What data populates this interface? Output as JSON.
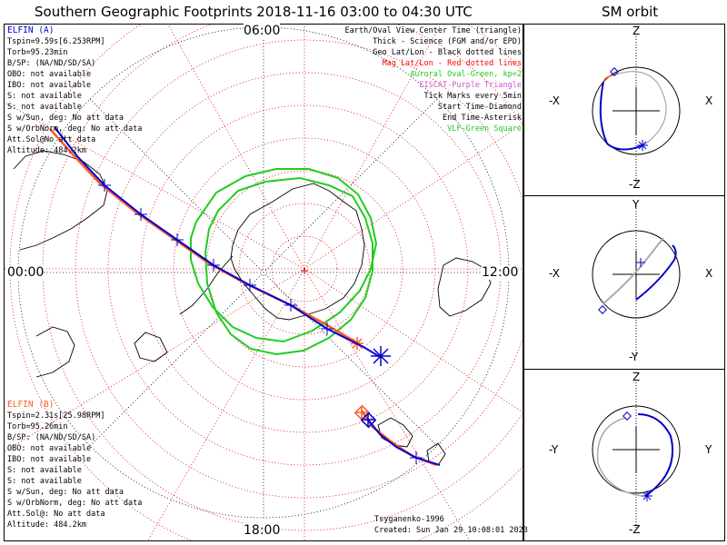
{
  "title": "Southern Geographic Footprints 2018-11-16 03:00 to 04:30 UTC",
  "sm_title": "SM orbit",
  "hours": {
    "top": "06:00",
    "left": "00:00",
    "right": "12:00",
    "bottom": "18:00"
  },
  "elfin_a": {
    "name": "ELFIN (A)",
    "color": "#0000cc",
    "lines": [
      "Tspin=9.59s[6.253RPM]",
      "Torb=95.23min",
      "B/SP: (NA/ND/SD/SA)",
      "OBO: not available",
      "IBO: not available",
      "S: not available",
      "S: not available",
      "S w/Sun, deg: No att data",
      "S w/OrbNorm, deg: No att data",
      "Att.Sol@No att data",
      "Altitude: 484.2km"
    ]
  },
  "elfin_b": {
    "name": "ELFIN (B)",
    "color": "#ff5a2a",
    "lines": [
      "Tspin=2.31s[25.98RPM]",
      "Torb=95.26min",
      "B/SP: (NA/ND/SD/SA)",
      "OBO: not available",
      "IBO: not available",
      "S: not available",
      "S: not available",
      "S w/Sun, deg: No att data",
      "S w/OrbNorm, deg: No att data",
      "Att.Sol@: No att data",
      "Altitude: 484.2km"
    ]
  },
  "legend": [
    {
      "text": "Earth/Oval View Center Time (triangle)",
      "color": "#000000"
    },
    {
      "text": "Thick - Science (FGM and/or EPD)",
      "color": "#000000"
    },
    {
      "text": "Geo Lat/Lon - Black dotted lines",
      "color": "#000000"
    },
    {
      "text": "Mag Lat/Lon - Red dotted lines",
      "color": "#ff0000"
    },
    {
      "text": "Auroral Oval-Green, kp=2",
      "color": "#22cc22"
    },
    {
      "text": "EISCAT-Purple Triangle",
      "color": "#cc55cc"
    },
    {
      "text": "Tick Marks every 5min",
      "color": "#000000"
    },
    {
      "text": "Start Time-Diamond",
      "color": "#000000"
    },
    {
      "text": "End Time-Asterisk",
      "color": "#000000"
    },
    {
      "text": "VLF-Green Square",
      "color": "#22cc22"
    }
  ],
  "credit": "Tsyganenko-1996",
  "created": "Created: Sun Jan 29 10:08:01 2023",
  "sm_panels": [
    {
      "top": "Z",
      "bottom": "-Z",
      "left": "-X",
      "right": "X"
    },
    {
      "top": "Y",
      "bottom": "-Y",
      "left": "-X",
      "right": "X"
    },
    {
      "top": "Z",
      "bottom": "-Z",
      "left": "-Y",
      "right": "Y"
    }
  ],
  "colors": {
    "geo_grid": "#000000",
    "mag_grid": "#dd0000",
    "oval": "#22cc22",
    "track_a": "#0000cc",
    "track_b": "#ff5a2a"
  }
}
